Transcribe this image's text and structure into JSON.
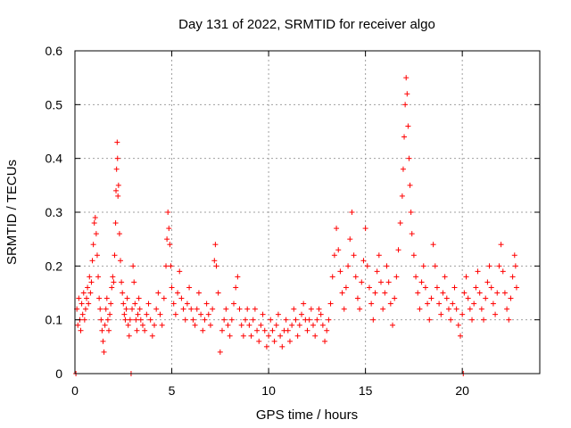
{
  "chart_data": {
    "type": "scatter",
    "title": "Day 131 of 2022, SRMTID for receiver algo",
    "xlabel": "GPS time / hours",
    "ylabel": "SRMTID / TECUs",
    "xlim": [
      0,
      24
    ],
    "ylim": [
      0,
      0.6
    ],
    "xticks": [
      0,
      5,
      10,
      15,
      20
    ],
    "xtick_labels": [
      "0",
      "5",
      "10",
      "15",
      "20"
    ],
    "yticks": [
      0,
      0.1,
      0.2,
      0.3,
      0.4,
      0.5,
      0.6
    ],
    "ytick_labels": [
      "0",
      "0.1",
      "0.2",
      "0.3",
      "0.4",
      "0.5",
      "0.6"
    ],
    "grid": true,
    "marker": "+",
    "color": "#ff0000",
    "series": [
      {
        "name": "SRMTID",
        "points": [
          [
            0.05,
            0.0
          ],
          [
            0.1,
            0.12
          ],
          [
            0.15,
            0.09
          ],
          [
            0.2,
            0.14
          ],
          [
            0.25,
            0.1
          ],
          [
            0.3,
            0.08
          ],
          [
            0.35,
            0.13
          ],
          [
            0.4,
            0.11
          ],
          [
            0.45,
            0.15
          ],
          [
            0.5,
            0.1
          ],
          [
            0.55,
            0.12
          ],
          [
            0.6,
            0.14
          ],
          [
            0.65,
            0.16
          ],
          [
            0.7,
            0.13
          ],
          [
            0.75,
            0.18
          ],
          [
            0.8,
            0.15
          ],
          [
            0.85,
            0.17
          ],
          [
            0.9,
            0.21
          ],
          [
            0.95,
            0.24
          ],
          [
            1.0,
            0.28
          ],
          [
            1.05,
            0.29
          ],
          [
            1.1,
            0.26
          ],
          [
            1.15,
            0.22
          ],
          [
            1.2,
            0.18
          ],
          [
            1.25,
            0.14
          ],
          [
            1.3,
            0.12
          ],
          [
            1.35,
            0.1
          ],
          [
            1.4,
            0.08
          ],
          [
            1.45,
            0.06
          ],
          [
            1.5,
            0.04
          ],
          [
            1.55,
            0.09
          ],
          [
            1.6,
            0.12
          ],
          [
            1.65,
            0.14
          ],
          [
            1.7,
            0.1
          ],
          [
            1.75,
            0.08
          ],
          [
            1.8,
            0.11
          ],
          [
            1.85,
            0.13
          ],
          [
            1.9,
            0.16
          ],
          [
            1.95,
            0.18
          ],
          [
            2.0,
            0.17
          ],
          [
            2.05,
            0.22
          ],
          [
            2.1,
            0.28
          ],
          [
            2.12,
            0.34
          ],
          [
            2.15,
            0.38
          ],
          [
            2.18,
            0.43
          ],
          [
            2.2,
            0.4
          ],
          [
            2.22,
            0.33
          ],
          [
            2.25,
            0.35
          ],
          [
            2.3,
            0.26
          ],
          [
            2.35,
            0.21
          ],
          [
            2.4,
            0.17
          ],
          [
            2.45,
            0.15
          ],
          [
            2.5,
            0.13
          ],
          [
            2.55,
            0.11
          ],
          [
            2.6,
            0.1
          ],
          [
            2.65,
            0.12
          ],
          [
            2.7,
            0.14
          ],
          [
            2.75,
            0.09
          ],
          [
            2.8,
            0.07
          ],
          [
            2.85,
            0.1
          ],
          [
            2.9,
            0.0
          ],
          [
            2.95,
            0.12
          ],
          [
            3.0,
            0.2
          ],
          [
            3.05,
            0.17
          ],
          [
            3.1,
            0.13
          ],
          [
            3.15,
            0.1
          ],
          [
            3.2,
            0.08
          ],
          [
            3.25,
            0.11
          ],
          [
            3.3,
            0.14
          ],
          [
            3.35,
            0.12
          ],
          [
            3.4,
            0.1
          ],
          [
            3.5,
            0.09
          ],
          [
            3.6,
            0.08
          ],
          [
            3.7,
            0.11
          ],
          [
            3.8,
            0.13
          ],
          [
            3.9,
            0.1
          ],
          [
            4.0,
            0.07
          ],
          [
            4.1,
            0.09
          ],
          [
            4.2,
            0.12
          ],
          [
            4.3,
            0.15
          ],
          [
            4.4,
            0.11
          ],
          [
            4.5,
            0.09
          ],
          [
            4.6,
            0.14
          ],
          [
            4.7,
            0.2
          ],
          [
            4.75,
            0.25
          ],
          [
            4.8,
            0.3
          ],
          [
            4.85,
            0.27
          ],
          [
            4.9,
            0.24
          ],
          [
            4.95,
            0.2
          ],
          [
            5.0,
            0.16
          ],
          [
            5.1,
            0.13
          ],
          [
            5.2,
            0.11
          ],
          [
            5.3,
            0.15
          ],
          [
            5.4,
            0.19
          ],
          [
            5.5,
            0.14
          ],
          [
            5.6,
            0.12
          ],
          [
            5.7,
            0.1
          ],
          [
            5.8,
            0.13
          ],
          [
            5.9,
            0.16
          ],
          [
            6.0,
            0.12
          ],
          [
            6.1,
            0.1
          ],
          [
            6.2,
            0.09
          ],
          [
            6.3,
            0.12
          ],
          [
            6.4,
            0.15
          ],
          [
            6.5,
            0.11
          ],
          [
            6.6,
            0.08
          ],
          [
            6.7,
            0.1
          ],
          [
            6.8,
            0.13
          ],
          [
            6.9,
            0.11
          ],
          [
            7.0,
            0.09
          ],
          [
            7.1,
            0.12
          ],
          [
            7.2,
            0.21
          ],
          [
            7.25,
            0.24
          ],
          [
            7.3,
            0.2
          ],
          [
            7.4,
            0.15
          ],
          [
            7.5,
            0.04
          ],
          [
            7.6,
            0.08
          ],
          [
            7.7,
            0.1
          ],
          [
            7.8,
            0.12
          ],
          [
            7.9,
            0.09
          ],
          [
            8.0,
            0.07
          ],
          [
            8.1,
            0.1
          ],
          [
            8.2,
            0.13
          ],
          [
            8.3,
            0.16
          ],
          [
            8.4,
            0.18
          ],
          [
            8.5,
            0.12
          ],
          [
            8.6,
            0.09
          ],
          [
            8.7,
            0.07
          ],
          [
            8.8,
            0.1
          ],
          [
            8.9,
            0.12
          ],
          [
            9.0,
            0.09
          ],
          [
            9.1,
            0.07
          ],
          [
            9.2,
            0.1
          ],
          [
            9.3,
            0.12
          ],
          [
            9.4,
            0.08
          ],
          [
            9.5,
            0.06
          ],
          [
            9.6,
            0.09
          ],
          [
            9.7,
            0.11
          ],
          [
            9.8,
            0.08
          ],
          [
            9.9,
            0.05
          ],
          [
            10.0,
            0.07
          ],
          [
            10.1,
            0.1
          ],
          [
            10.2,
            0.08
          ],
          [
            10.3,
            0.06
          ],
          [
            10.4,
            0.09
          ],
          [
            10.5,
            0.11
          ],
          [
            10.6,
            0.07
          ],
          [
            10.7,
            0.05
          ],
          [
            10.8,
            0.08
          ],
          [
            10.9,
            0.1
          ],
          [
            11.0,
            0.08
          ],
          [
            11.1,
            0.06
          ],
          [
            11.2,
            0.09
          ],
          [
            11.3,
            0.12
          ],
          [
            11.4,
            0.1
          ],
          [
            11.5,
            0.07
          ],
          [
            11.6,
            0.09
          ],
          [
            11.7,
            0.11
          ],
          [
            11.8,
            0.13
          ],
          [
            11.9,
            0.1
          ],
          [
            12.0,
            0.08
          ],
          [
            12.1,
            0.1
          ],
          [
            12.2,
            0.12
          ],
          [
            12.3,
            0.09
          ],
          [
            12.4,
            0.07
          ],
          [
            12.5,
            0.1
          ],
          [
            12.6,
            0.12
          ],
          [
            12.7,
            0.11
          ],
          [
            12.8,
            0.09
          ],
          [
            12.9,
            0.06
          ],
          [
            13.0,
            0.08
          ],
          [
            13.1,
            0.1
          ],
          [
            13.2,
            0.13
          ],
          [
            13.3,
            0.18
          ],
          [
            13.4,
            0.22
          ],
          [
            13.5,
            0.27
          ],
          [
            13.6,
            0.23
          ],
          [
            13.7,
            0.19
          ],
          [
            13.8,
            0.15
          ],
          [
            13.9,
            0.12
          ],
          [
            14.0,
            0.16
          ],
          [
            14.1,
            0.2
          ],
          [
            14.2,
            0.25
          ],
          [
            14.3,
            0.3
          ],
          [
            14.4,
            0.22
          ],
          [
            14.5,
            0.18
          ],
          [
            14.6,
            0.14
          ],
          [
            14.7,
            0.12
          ],
          [
            14.8,
            0.17
          ],
          [
            14.9,
            0.21
          ],
          [
            15.0,
            0.27
          ],
          [
            15.1,
            0.2
          ],
          [
            15.2,
            0.16
          ],
          [
            15.3,
            0.13
          ],
          [
            15.4,
            0.1
          ],
          [
            15.5,
            0.15
          ],
          [
            15.6,
            0.19
          ],
          [
            15.7,
            0.22
          ],
          [
            15.8,
            0.17
          ],
          [
            15.9,
            0.12
          ],
          [
            16.0,
            0.15
          ],
          [
            16.1,
            0.2
          ],
          [
            16.2,
            0.17
          ],
          [
            16.3,
            0.13
          ],
          [
            16.4,
            0.09
          ],
          [
            16.5,
            0.14
          ],
          [
            16.6,
            0.18
          ],
          [
            16.7,
            0.23
          ],
          [
            16.8,
            0.28
          ],
          [
            16.9,
            0.33
          ],
          [
            16.95,
            0.38
          ],
          [
            17.0,
            0.44
          ],
          [
            17.05,
            0.5
          ],
          [
            17.1,
            0.55
          ],
          [
            17.15,
            0.52
          ],
          [
            17.2,
            0.46
          ],
          [
            17.25,
            0.4
          ],
          [
            17.3,
            0.35
          ],
          [
            17.35,
            0.3
          ],
          [
            17.4,
            0.26
          ],
          [
            17.5,
            0.22
          ],
          [
            17.6,
            0.18
          ],
          [
            17.7,
            0.15
          ],
          [
            17.8,
            0.12
          ],
          [
            17.9,
            0.17
          ],
          [
            18.0,
            0.2
          ],
          [
            18.1,
            0.16
          ],
          [
            18.2,
            0.13
          ],
          [
            18.3,
            0.1
          ],
          [
            18.4,
            0.14
          ],
          [
            18.5,
            0.24
          ],
          [
            18.6,
            0.2
          ],
          [
            18.7,
            0.16
          ],
          [
            18.8,
            0.13
          ],
          [
            18.9,
            0.11
          ],
          [
            19.0,
            0.15
          ],
          [
            19.1,
            0.18
          ],
          [
            19.2,
            0.14
          ],
          [
            19.3,
            0.12
          ],
          [
            19.4,
            0.1
          ],
          [
            19.5,
            0.13
          ],
          [
            19.6,
            0.16
          ],
          [
            19.7,
            0.12
          ],
          [
            19.8,
            0.09
          ],
          [
            19.9,
            0.07
          ],
          [
            20.0,
            0.11
          ],
          [
            20.05,
            0.0
          ],
          [
            20.1,
            0.15
          ],
          [
            20.2,
            0.18
          ],
          [
            20.3,
            0.14
          ],
          [
            20.4,
            0.12
          ],
          [
            20.5,
            0.1
          ],
          [
            20.6,
            0.13
          ],
          [
            20.7,
            0.16
          ],
          [
            20.8,
            0.19
          ],
          [
            20.9,
            0.15
          ],
          [
            21.0,
            0.12
          ],
          [
            21.1,
            0.1
          ],
          [
            21.2,
            0.14
          ],
          [
            21.3,
            0.17
          ],
          [
            21.4,
            0.2
          ],
          [
            21.5,
            0.16
          ],
          [
            21.6,
            0.13
          ],
          [
            21.7,
            0.11
          ],
          [
            21.8,
            0.15
          ],
          [
            21.9,
            0.2
          ],
          [
            22.0,
            0.24
          ],
          [
            22.1,
            0.19
          ],
          [
            22.2,
            0.15
          ],
          [
            22.3,
            0.12
          ],
          [
            22.4,
            0.1
          ],
          [
            22.5,
            0.14
          ],
          [
            22.6,
            0.18
          ],
          [
            22.7,
            0.22
          ],
          [
            22.75,
            0.2
          ],
          [
            22.8,
            0.16
          ]
        ]
      }
    ]
  }
}
